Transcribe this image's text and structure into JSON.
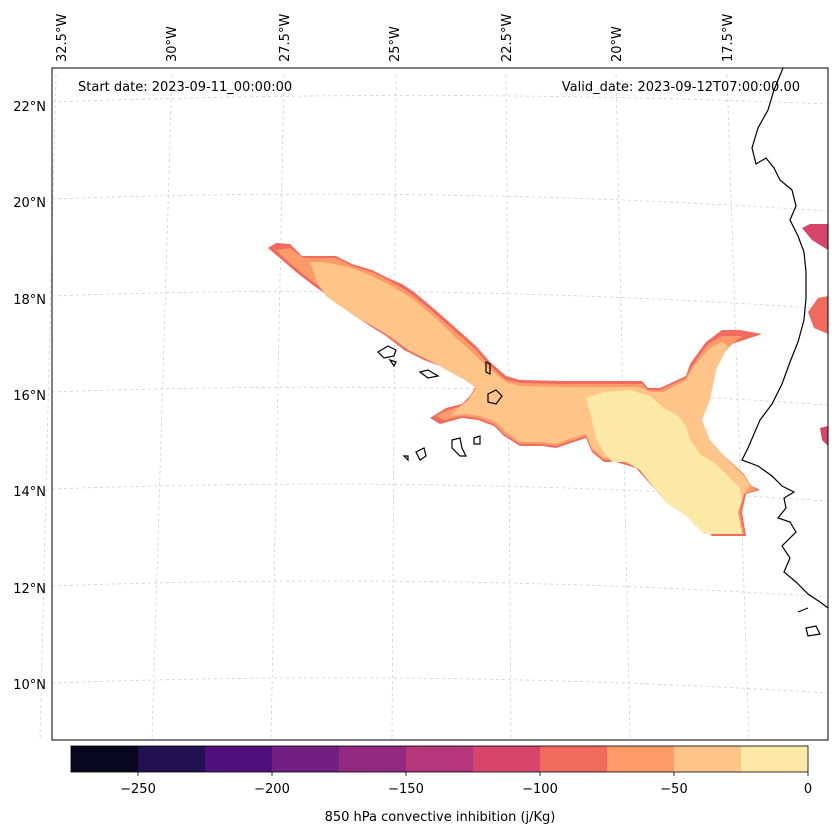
{
  "map": {
    "start_date": "Start date: 2023-09-11_00:00:00",
    "valid_date": "Valid_date: 2023-09-12T07:00:00.00",
    "lon_labels": [
      "32.5°W",
      "30°W",
      "27.5°W",
      "25°W",
      "22.5°W",
      "20°W",
      "17.5°W"
    ],
    "lat_labels": [
      "22°N",
      "20°N",
      "18°N",
      "16°N",
      "14°N",
      "12°N",
      "10°N"
    ],
    "grid": true
  },
  "colorbar": {
    "title": "850 hPa convective inhibition (j/Kg)",
    "tick_labels": [
      "−250",
      "−200",
      "−150",
      "−100",
      "−50",
      "0"
    ],
    "levels": [
      -275,
      -250,
      -225,
      -200,
      -175,
      -150,
      -125,
      -100,
      -75,
      -50,
      -25,
      0
    ],
    "colors": [
      "#07061c",
      "#221150",
      "#4e117b",
      "#721f81",
      "#922a7f",
      "#b5367a",
      "#d6456c",
      "#f06a5e",
      "#fd9a6a",
      "#fec488",
      "#fce8a7"
    ]
  }
}
